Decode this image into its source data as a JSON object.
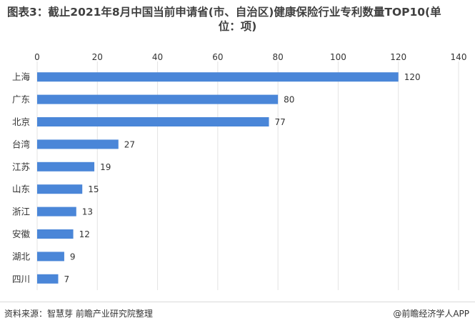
{
  "title_line1": "图表3：截止2021年8月中国当前申请省(市、自治区)健康保险行业专利数量TOP10(单",
  "title_line2": "位：项)",
  "footer": {
    "source": "资料来源：智慧芽 前瞻产业研究院整理",
    "brand": "@前瞻经济学人APP"
  },
  "colors": {
    "bar": "#4a86d8",
    "grid": "#e3e3e3",
    "axis_text": "#333333"
  },
  "chart_data": {
    "type": "bar",
    "orientation": "horizontal",
    "categories": [
      "上海",
      "广东",
      "北京",
      "台湾",
      "江苏",
      "山东",
      "浙江",
      "安徽",
      "湖北",
      "四川"
    ],
    "values": [
      120,
      80,
      77,
      27,
      19,
      15,
      13,
      12,
      9,
      7
    ],
    "xlim": [
      0,
      140
    ],
    "xticks": [
      0,
      20,
      40,
      60,
      80,
      100,
      120,
      140
    ],
    "xaxis_position": "top",
    "grid": true
  }
}
